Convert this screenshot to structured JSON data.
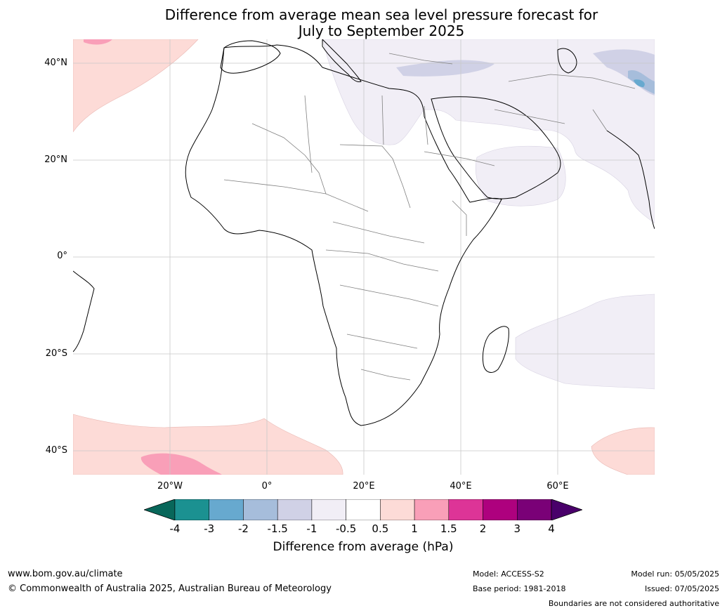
{
  "title": {
    "line1": "Difference from average mean sea level pressure forecast for",
    "line2": "July to September 2025"
  },
  "map": {
    "lat_labels": [
      "40°N",
      "20°N",
      "0°",
      "20°S",
      "40°S"
    ],
    "lon_labels": [
      "20°W",
      "0°",
      "20°E",
      "40°E",
      "60°E"
    ],
    "colors": {
      "ocean": "#ffffff",
      "land_outline": "#000000",
      "borders": "#808080",
      "grid": "#c8c8c8"
    }
  },
  "colorbar": {
    "ticks": [
      "-4",
      "-3",
      "-2",
      "-1.5",
      "-1",
      "-0.5",
      "0.5",
      "1",
      "1.5",
      "2",
      "3",
      "4"
    ],
    "colors": [
      "#08675a",
      "#1b9191",
      "#67a9cf",
      "#a6bddb",
      "#d0d1e6",
      "#f1eef6",
      "#ffffff",
      "#fddbd7",
      "#f99fb8",
      "#dd3497",
      "#ae017e",
      "#7a0177",
      "#49006a"
    ],
    "label": "Difference from average (hPa)"
  },
  "footer": {
    "website": "www.bom.gov.au/climate",
    "copyright": "© Commonwealth of Australia 2025, Australian Bureau of Meteorology",
    "model": "Model: ACCESS-S2",
    "base_period": "Base period: 1981-2018",
    "model_run": "Model run: 05/05/2025",
    "issued": "Issued: 07/05/2025",
    "disclaimer": "Boundaries are not considered authoritative"
  }
}
